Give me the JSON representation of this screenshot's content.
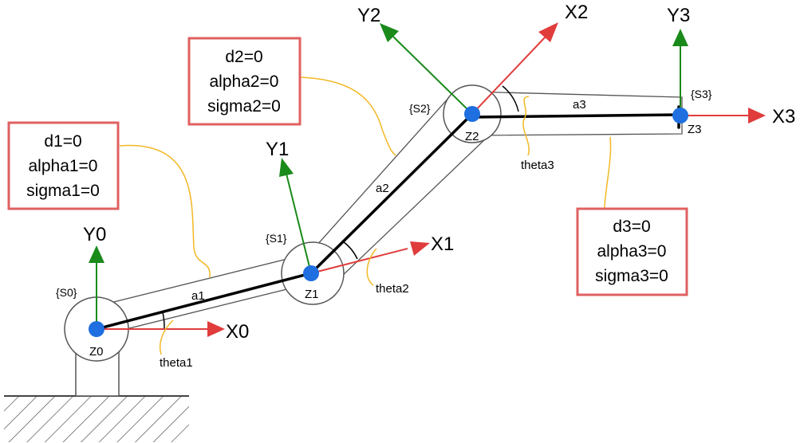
{
  "colors": {
    "x_axis": "#e03c3c",
    "y_axis": "#1a8a1a",
    "joint": "#1f6fe0",
    "annotation_border": "#e06060",
    "leader": "#f2b824",
    "link": "#000000"
  },
  "base": {
    "frame": "{S0}",
    "joint": "Z0",
    "x_axis": "X0",
    "y_axis": "Y0"
  },
  "joints": [
    {
      "frame": "{S1}",
      "joint": "Z1",
      "x_axis": "X1",
      "y_axis": "Y1"
    },
    {
      "frame": "{S2}",
      "joint": "Z2",
      "x_axis": "X2",
      "y_axis": "Y2"
    },
    {
      "frame": "{S3}",
      "joint": "Z3",
      "x_axis": "X3",
      "y_axis": "Y3"
    }
  ],
  "links": [
    "a1",
    "a2",
    "a3"
  ],
  "angles": [
    "theta1",
    "theta2",
    "theta3"
  ],
  "parameter_boxes": [
    {
      "lines": [
        "d1=0",
        "alpha1=0",
        "sigma1=0"
      ]
    },
    {
      "lines": [
        "d2=0",
        "alpha2=0",
        "sigma2=0"
      ]
    },
    {
      "lines": [
        "d3=0",
        "alpha3=0",
        "sigma3=0"
      ]
    }
  ]
}
